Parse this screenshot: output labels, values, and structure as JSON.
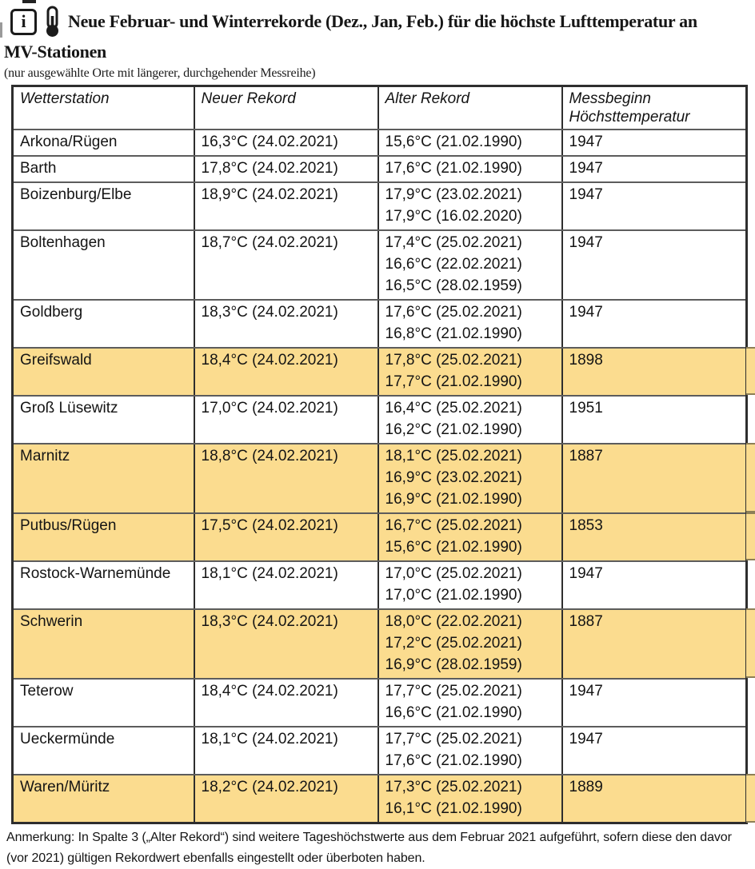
{
  "header": {
    "info_icon_glyph": "i",
    "title_line1": "Neue Februar- und Winterrekorde (Dez., Jan, Feb.) für die höchste Lufttemperatur an",
    "title_line2": "MV-Stationen",
    "subtitle": "(nur ausgewählte Orte mit längerer, durchgehender Messreihe)"
  },
  "table": {
    "columns": [
      [
        "Wetterstation"
      ],
      [
        "Neuer Rekord"
      ],
      [
        "Alter Rekord"
      ],
      [
        "Messbeginn",
        "Höchsttemperatur"
      ]
    ],
    "rows": [
      {
        "station": "Arkona/Rügen",
        "new_record": "16,3°C (24.02.2021)",
        "old_records": [
          "15,6°C (21.02.1990)"
        ],
        "measure_start": "1947",
        "highlight": false
      },
      {
        "station": "Barth",
        "new_record": "17,8°C (24.02.2021)",
        "old_records": [
          "17,6°C (21.02.1990)"
        ],
        "measure_start": "1947",
        "highlight": false
      },
      {
        "station": "Boizenburg/Elbe",
        "new_record": "18,9°C (24.02.2021)",
        "old_records": [
          "17,9°C (23.02.2021)",
          "17,9°C (16.02.2020)"
        ],
        "measure_start": "1947",
        "highlight": false
      },
      {
        "station": "Boltenhagen",
        "new_record": "18,7°C (24.02.2021)",
        "old_records": [
          "17,4°C (25.02.2021)",
          "16,6°C (22.02.2021)",
          "16,5°C (28.02.1959)"
        ],
        "measure_start": "1947",
        "highlight": false
      },
      {
        "station": "Goldberg",
        "new_record": "18,3°C (24.02.2021)",
        "old_records": [
          "17,6°C (25.02.2021)",
          "16,8°C (21.02.1990)"
        ],
        "measure_start": "1947",
        "highlight": false
      },
      {
        "station": "Greifswald",
        "new_record": "18,4°C (24.02.2021)",
        "old_records": [
          "17,8°C (25.02.2021)",
          "17,7°C (21.02.1990)"
        ],
        "measure_start": "1898",
        "highlight": true
      },
      {
        "station": "Groß Lüsewitz",
        "new_record": "17,0°C (24.02.2021)",
        "old_records": [
          "16,4°C (25.02.2021)",
          "16,2°C (21.02.1990)"
        ],
        "measure_start": "1951",
        "highlight": false
      },
      {
        "station": "Marnitz",
        "new_record": "18,8°C (24.02.2021)",
        "old_records": [
          "18,1°C (25.02.2021)",
          "16,9°C (23.02.2021)",
          "16,9°C (21.02.1990)"
        ],
        "measure_start": "1887",
        "highlight": true
      },
      {
        "station": "Putbus/Rügen",
        "new_record": "17,5°C (24.02.2021)",
        "old_records": [
          "16,7°C (25.02.2021)",
          "15,6°C (21.02.1990)"
        ],
        "measure_start": "1853",
        "highlight": true
      },
      {
        "station": "Rostock-Warnemünde",
        "new_record": "18,1°C (24.02.2021)",
        "old_records": [
          "17,0°C (25.02.2021)",
          "17,0°C (21.02.1990)"
        ],
        "measure_start": "1947",
        "highlight": false
      },
      {
        "station": "Schwerin",
        "new_record": "18,3°C (24.02.2021)",
        "old_records": [
          "18,0°C (22.02.2021)",
          "17,2°C (25.02.2021)",
          "16,9°C (28.02.1959)"
        ],
        "measure_start": "1887",
        "highlight": true
      },
      {
        "station": "Teterow",
        "new_record": "18,4°C (24.02.2021)",
        "old_records": [
          "17,7°C (25.02.2021)",
          "16,6°C (21.02.1990)"
        ],
        "measure_start": "1947",
        "highlight": false
      },
      {
        "station": "Ueckermünde",
        "new_record": "18,1°C (24.02.2021)",
        "old_records": [
          "17,7°C (25.02.2021)",
          "17,6°C (21.02.1990)"
        ],
        "measure_start": "1947",
        "highlight": false
      },
      {
        "station": "Waren/Müritz",
        "new_record": "18,2°C (24.02.2021)",
        "old_records": [
          "17,3°C (25.02.2021)",
          "16,1°C (21.02.1990)"
        ],
        "measure_start": "1889",
        "highlight": true
      }
    ]
  },
  "note": "Anmerkung: In Spalte 3 („Alter Rekord“) sind weitere Tageshöchstwerte aus dem Februar 2021 aufgeführt, sofern diese den davor (vor 2021) gültigen Rekordwert ebenfalls eingestellt oder überboten haben.",
  "colors": {
    "row_highlight": "#FBDC8F",
    "border_dark": "#2E2E2E",
    "border_gray": "#5C5C5C"
  }
}
